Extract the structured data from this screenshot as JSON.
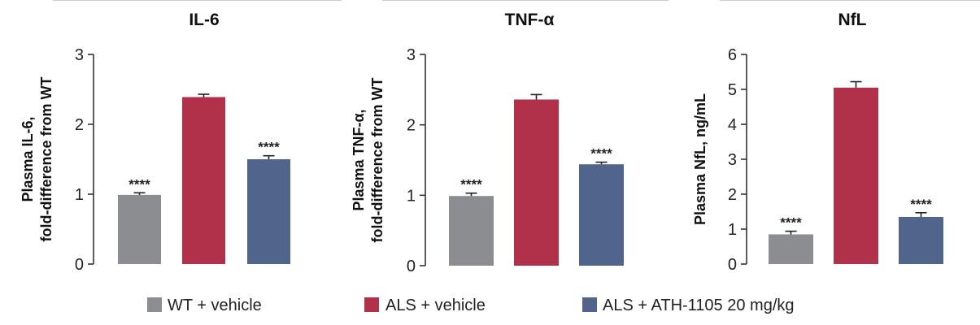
{
  "legend": [
    {
      "label": "WT + vehicle",
      "color": "#8c8d91"
    },
    {
      "label": "ALS + vehicle",
      "color": "#b2314a"
    },
    {
      "label": "ALS + ATH-1105 20 mg/kg",
      "color": "#50648c"
    }
  ],
  "chart_data": [
    {
      "type": "bar",
      "title": "IL-6",
      "ylabel_lines": [
        "Plasma IL-6,",
        "fold-difference from WT"
      ],
      "categories": [
        "WT + vehicle",
        "ALS + vehicle",
        "ALS + ATH-1105 20 mg/kg"
      ],
      "values": [
        0.99,
        2.39,
        1.5
      ],
      "errors": [
        0.03,
        0.04,
        0.05
      ],
      "significance": [
        "****",
        "",
        "****"
      ],
      "ylim": [
        0,
        3
      ],
      "yticks": [
        0,
        1,
        2,
        3
      ],
      "grid": false
    },
    {
      "type": "bar",
      "title": "TNF-α",
      "ylabel_lines": [
        "Plasma TNF-α,",
        "fold-difference from WT"
      ],
      "categories": [
        "WT + vehicle",
        "ALS + vehicle",
        "ALS + ATH-1105 20 mg/kg"
      ],
      "values": [
        0.99,
        2.36,
        1.44
      ],
      "errors": [
        0.04,
        0.07,
        0.03
      ],
      "significance": [
        "****",
        "",
        "****"
      ],
      "ylim": [
        0,
        3
      ],
      "yticks": [
        0,
        1,
        2,
        3
      ],
      "grid": false
    },
    {
      "type": "bar",
      "title": "NfL",
      "ylabel_lines": [
        "Plasma NfL, ng/mL"
      ],
      "categories": [
        "WT + vehicle",
        "ALS + vehicle",
        "ALS + ATH-1105 20 mg/kg"
      ],
      "values": [
        0.85,
        5.05,
        1.35
      ],
      "errors": [
        0.09,
        0.17,
        0.12
      ],
      "significance": [
        "****",
        "",
        "****"
      ],
      "ylim": [
        0,
        6
      ],
      "yticks": [
        0,
        1,
        2,
        3,
        4,
        5,
        6
      ],
      "grid": false
    }
  ]
}
